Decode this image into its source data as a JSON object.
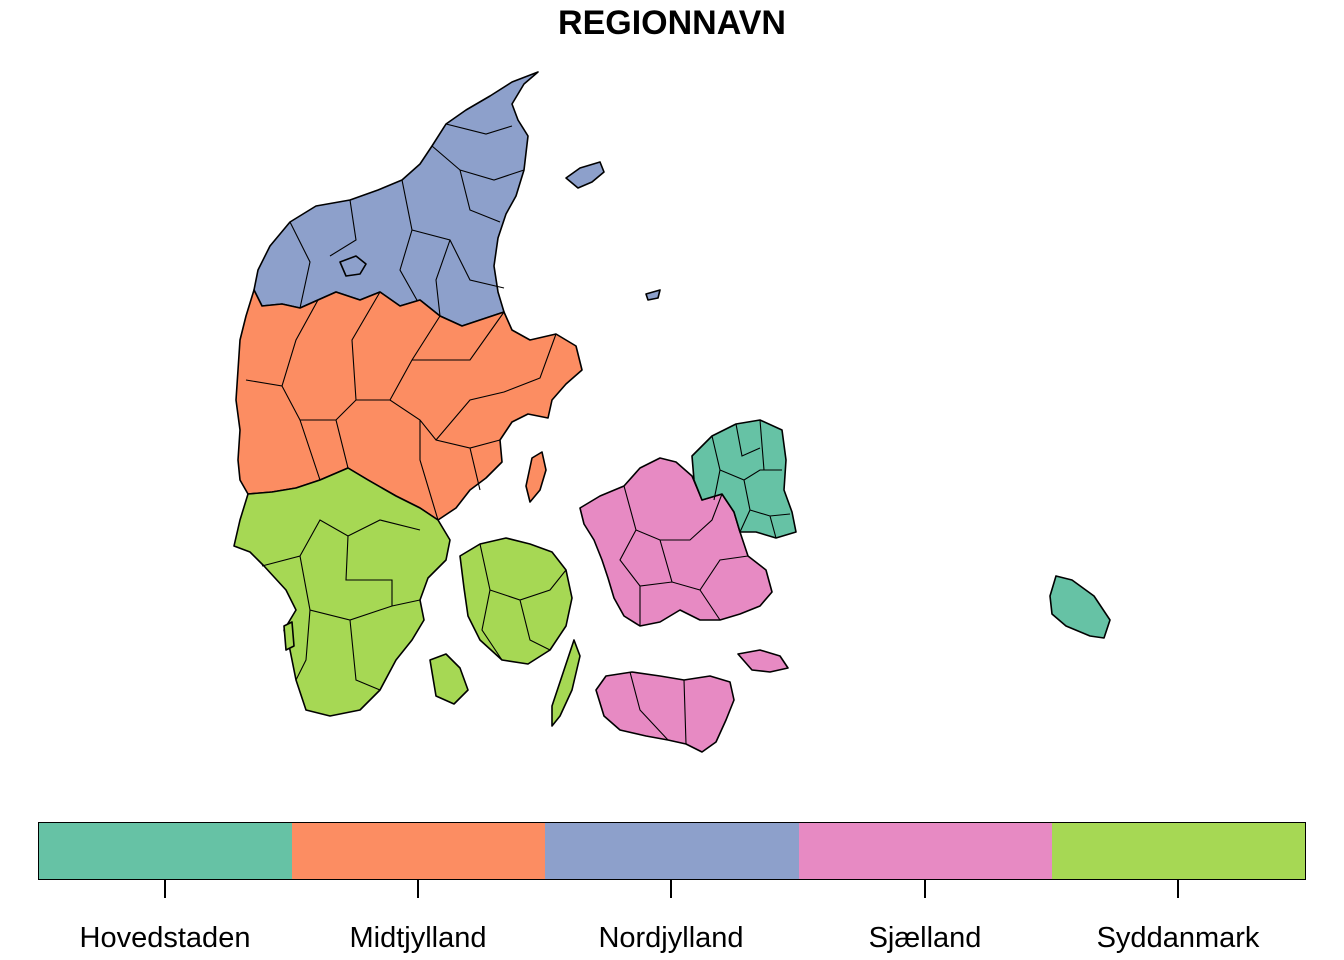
{
  "title": "REGIONNAVN",
  "legend": {
    "items": [
      {
        "label": "Hovedstaden",
        "color": "#66c2a5"
      },
      {
        "label": "Midtjylland",
        "color": "#fc8d62"
      },
      {
        "label": "Nordjylland",
        "color": "#8da0cb"
      },
      {
        "label": "Sjælland",
        "color": "#e78ac3"
      },
      {
        "label": "Syddanmark",
        "color": "#a6d854"
      }
    ]
  },
  "regions": [
    {
      "key": "nordjylland",
      "name": "Nordjylland",
      "color": "#8da0cb"
    },
    {
      "key": "midtjylland",
      "name": "Midtjylland",
      "color": "#fc8d62"
    },
    {
      "key": "syddanmark",
      "name": "Syddanmark",
      "color": "#a6d854"
    },
    {
      "key": "sjaelland",
      "name": "Sjælland",
      "color": "#e78ac3"
    },
    {
      "key": "hovedstaden",
      "name": "Hovedstaden",
      "color": "#66c2a5"
    }
  ]
}
